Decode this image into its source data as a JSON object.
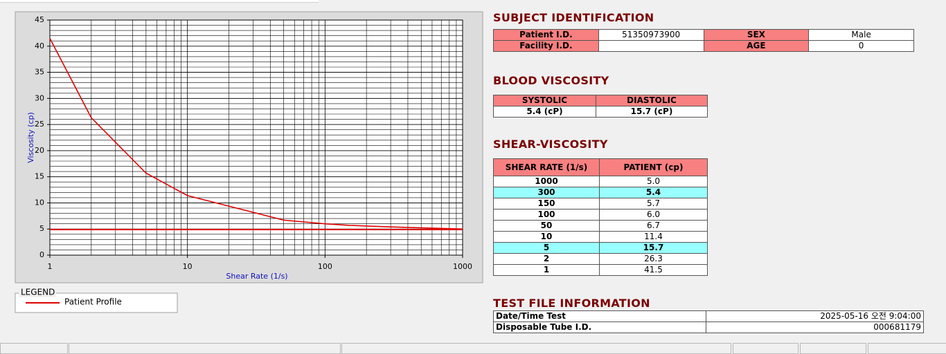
{
  "chart_data": {
    "type": "line",
    "xlabel": "Shear Rate (1/s)",
    "ylabel": "Viscosity (cp)",
    "x": [
      1,
      2,
      5,
      10,
      50,
      100,
      150,
      300,
      1000
    ],
    "series": [
      {
        "name": "Patient Profile",
        "color": "#e00000",
        "values": [
          41.5,
          26.3,
          15.7,
          11.4,
          6.7,
          6.0,
          5.7,
          5.4,
          5.0
        ]
      }
    ],
    "hlines": [
      {
        "value": 4.9,
        "color": "#e00000"
      }
    ],
    "xlim": [
      1,
      1000
    ],
    "xticks": [
      1,
      10,
      100,
      1000
    ],
    "xscale": "log",
    "ylim": [
      0,
      45
    ],
    "yticks": [
      0,
      5,
      10,
      15,
      20,
      25,
      30,
      35,
      40,
      45
    ],
    "grid": true,
    "legend_title": "LEGEND"
  },
  "subject": {
    "title": "SUBJECT IDENTIFICATION",
    "rows": [
      [
        "Patient I.D.",
        "51350973900",
        "SEX",
        "Male"
      ],
      [
        "Facility I.D.",
        "",
        "AGE",
        "0"
      ]
    ]
  },
  "blood": {
    "title": "BLOOD VISCOSITY",
    "headers": [
      "SYSTOLIC",
      "DIASTOLIC"
    ],
    "values": [
      "5.4 (cP)",
      "15.7 (cP)"
    ]
  },
  "shear": {
    "title": "SHEAR-VISCOSITY",
    "headers": [
      "SHEAR RATE (1/s)",
      "PATIENT (cp)"
    ],
    "rows": [
      {
        "rate": "1000",
        "patient": "5.0",
        "highlighted": false
      },
      {
        "rate": "300",
        "patient": "5.4",
        "highlighted": true
      },
      {
        "rate": "150",
        "patient": "5.7",
        "highlighted": false
      },
      {
        "rate": "100",
        "patient": "6.0",
        "highlighted": false
      },
      {
        "rate": "50",
        "patient": "6.7",
        "highlighted": false
      },
      {
        "rate": "10",
        "patient": "11.4",
        "highlighted": false
      },
      {
        "rate": "5",
        "patient": "15.7",
        "highlighted": true
      },
      {
        "rate": "2",
        "patient": "26.3",
        "highlighted": false
      },
      {
        "rate": "1",
        "patient": "41.5",
        "highlighted": false
      }
    ]
  },
  "file": {
    "title": "TEST FILE INFORMATION",
    "rows": [
      [
        "Date/Time Test",
        "2025-05-16   오전 9:04:00"
      ],
      [
        "Disposable Tube I.D.",
        "000681179"
      ]
    ]
  }
}
